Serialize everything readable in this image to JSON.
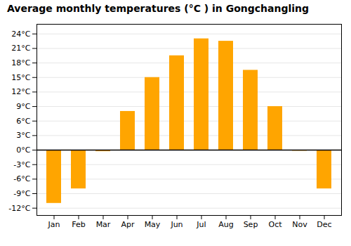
{
  "chart_data": {
    "type": "bar",
    "title": "Average monthly temperatures (°C ) in Gongchangling",
    "categories": [
      "Jan",
      "Feb",
      "Mar",
      "Apr",
      "May",
      "Jun",
      "Jul",
      "Aug",
      "Sep",
      "Oct",
      "Nov",
      "Dec"
    ],
    "values": [
      -11,
      -8,
      -0.3,
      8,
      15,
      19.5,
      23,
      22.5,
      16.5,
      9,
      -0.2,
      -8
    ],
    "color": "#FFA500",
    "ylim": [
      -13.5,
      26
    ],
    "yticks": [
      {
        "value": -12,
        "label": "-12°C"
      },
      {
        "value": -9,
        "label": "-9°C"
      },
      {
        "value": -6,
        "label": "-6°C"
      },
      {
        "value": -3,
        "label": "-3°C"
      },
      {
        "value": 0,
        "label": "0°C"
      },
      {
        "value": 3,
        "label": "3°C"
      },
      {
        "value": 6,
        "label": "6°C"
      },
      {
        "value": 9,
        "label": "9°C"
      },
      {
        "value": 12,
        "label": "12°C"
      },
      {
        "value": 15,
        "label": "15°C"
      },
      {
        "value": 18,
        "label": "18°C"
      },
      {
        "value": 21,
        "label": "21°C"
      },
      {
        "value": 24,
        "label": "24°C"
      }
    ],
    "grid": true
  }
}
